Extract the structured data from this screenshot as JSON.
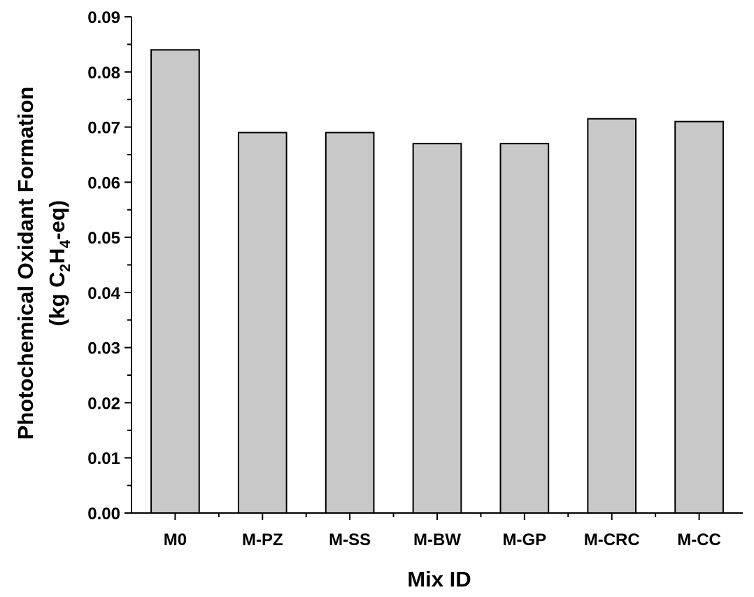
{
  "chart_data": {
    "type": "bar",
    "categories": [
      "M0",
      "M-PZ",
      "M-SS",
      "M-BW",
      "M-GP",
      "M-CRC",
      "M-CC"
    ],
    "values": [
      0.084,
      0.069,
      0.069,
      0.067,
      0.067,
      0.0715,
      0.071
    ],
    "xlabel": "Mix ID",
    "ylabel": {
      "line1": "Photochemical Oxidant Formation",
      "line2_pre": "(kg C",
      "sub1": "2",
      "mid": "H",
      "sub2": "4",
      "line2_post": "-eq)"
    },
    "ylim": [
      0,
      0.09
    ],
    "yticks": [
      "0.00",
      "0.01",
      "0.02",
      "0.03",
      "0.04",
      "0.05",
      "0.06",
      "0.07",
      "0.08",
      "0.09"
    ],
    "grid": false,
    "bar_color": "#c8c8c8"
  }
}
